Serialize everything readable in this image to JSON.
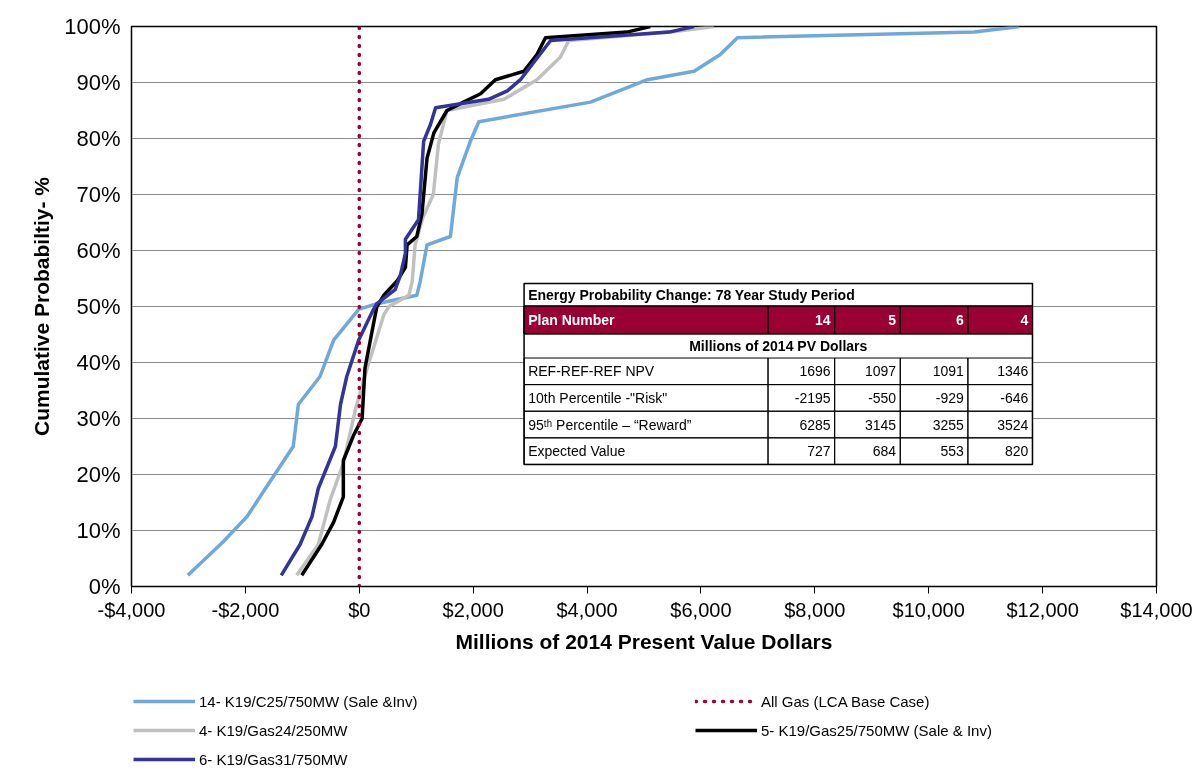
{
  "chart_data": {
    "type": "line",
    "xlabel": "Millions of 2014 Present Value Dollars",
    "ylabel": "Cumulative Probabiltiy- %",
    "xlim": [
      -4000,
      14000
    ],
    "xticks": [
      {
        "value": -4000,
        "label": "-$4,000"
      },
      {
        "value": -2000,
        "label": "-$2,000"
      },
      {
        "value": 0,
        "label": "$0"
      },
      {
        "value": 2000,
        "label": "$2,000"
      },
      {
        "value": 4000,
        "label": "$4,000"
      },
      {
        "value": 6000,
        "label": "$6,000"
      },
      {
        "value": 8000,
        "label": "$8,000"
      },
      {
        "value": 10000,
        "label": "$10,000"
      },
      {
        "value": 12000,
        "label": "$12,000"
      },
      {
        "value": 14000,
        "label": "$14,000"
      }
    ],
    "ylim": [
      0,
      100
    ],
    "yticks": [
      {
        "value": 0,
        "label": "0%"
      },
      {
        "value": 10,
        "label": "10%"
      },
      {
        "value": 20,
        "label": "20%"
      },
      {
        "value": 30,
        "label": "30%"
      },
      {
        "value": 40,
        "label": "40%"
      },
      {
        "value": 50,
        "label": "50%"
      },
      {
        "value": 60,
        "label": "60%"
      },
      {
        "value": 70,
        "label": "70%"
      },
      {
        "value": 80,
        "label": "80%"
      },
      {
        "value": 90,
        "label": "90%"
      },
      {
        "value": 100,
        "label": "100%"
      }
    ],
    "grid": "y",
    "legend": "bottom",
    "line_style": "solid",
    "series": [
      {
        "name": "14- K19/C25/750MW (Sale &Inv)",
        "color": "#6fa8dc",
        "x": [
          -3010,
          -2390,
          -1970,
          -1680,
          -1160,
          -1070,
          -690,
          -450,
          -10,
          310,
          1010,
          1070,
          1190,
          1600,
          1720,
          1950,
          2100,
          4060,
          5060,
          5880,
          6340,
          6640,
          10800,
          11590
        ],
        "values": [
          2,
          8,
          12.5,
          17,
          25,
          32.5,
          37.5,
          44,
          49.5,
          50.5,
          52,
          54.5,
          61,
          62.5,
          73,
          79.5,
          83,
          86.5,
          90.5,
          92,
          95,
          98,
          99,
          100
        ]
      },
      {
        "name": "4- K19/Gas24/250MW",
        "color": "#c0c0c0",
        "x": [
          -1100,
          -720,
          -510,
          -280,
          -70,
          140,
          430,
          520,
          870,
          930,
          980,
          1120,
          1300,
          1390,
          1540,
          2540,
          3120,
          3530,
          3680,
          5470,
          6230
        ],
        "values": [
          2,
          7.5,
          15.5,
          22,
          31.5,
          39,
          48.5,
          50,
          52,
          54.5,
          61,
          66,
          70,
          79,
          85,
          87,
          90.5,
          94.5,
          97.5,
          99,
          100
        ]
      },
      {
        "name": "5- K19/Gas25/750MW (Sale & Inv)",
        "color": "#000000",
        "x": [
          -1010,
          -660,
          -450,
          -280,
          -280,
          -100,
          50,
          100,
          280,
          310,
          430,
          660,
          810,
          840,
          1010,
          1100,
          1190,
          1310,
          1540,
          1830,
          2130,
          2390,
          2890,
          3120,
          3270,
          4700,
          5110
        ],
        "values": [
          2,
          7.5,
          11.5,
          16,
          22.5,
          27,
          30,
          39,
          48.5,
          50,
          52,
          54.5,
          57,
          61,
          62.5,
          66.5,
          76.5,
          81,
          85,
          86.5,
          88,
          90.5,
          92,
          95,
          98,
          99,
          100
        ]
      },
      {
        "name": "6- K19/Gas31/750MW",
        "color": "#333399",
        "x": [
          -1370,
          -1040,
          -830,
          -720,
          -420,
          -330,
          -220,
          -10,
          250,
          310,
          630,
          720,
          810,
          810,
          1040,
          1130,
          1250,
          1340,
          2270,
          2600,
          2830,
          3360,
          5440,
          5880
        ],
        "values": [
          2,
          7.5,
          12.5,
          17.5,
          25,
          32.5,
          37.5,
          44,
          49.5,
          50.5,
          53,
          55.5,
          59.5,
          62,
          65.5,
          79.5,
          82.5,
          85.5,
          87,
          88.5,
          90.5,
          97.5,
          99,
          100
        ]
      }
    ],
    "ref_lines": [
      {
        "axis": "x",
        "value": 0,
        "label": "All Gas (LCA Base Case)",
        "color": "#a0003c",
        "line_style": "dotted"
      }
    ],
    "annotations": [
      "Energy Probability Change: 78 Year Study Period",
      "Plan Number",
      "14",
      "5",
      "6",
      "4",
      "Millions of 2014 PV Dollars",
      "REF-REF-REF NPV",
      "1696",
      "1097",
      "1091",
      "1346",
      "10th Percentile -\"Risk\"",
      "-2195",
      "-550",
      "-929",
      "-646",
      "95ᵗʰ Percentile – “Reward”",
      "6285",
      "3145",
      "3255",
      "3524",
      "Expected Value",
      "727",
      "684",
      "553",
      "820"
    ]
  }
}
